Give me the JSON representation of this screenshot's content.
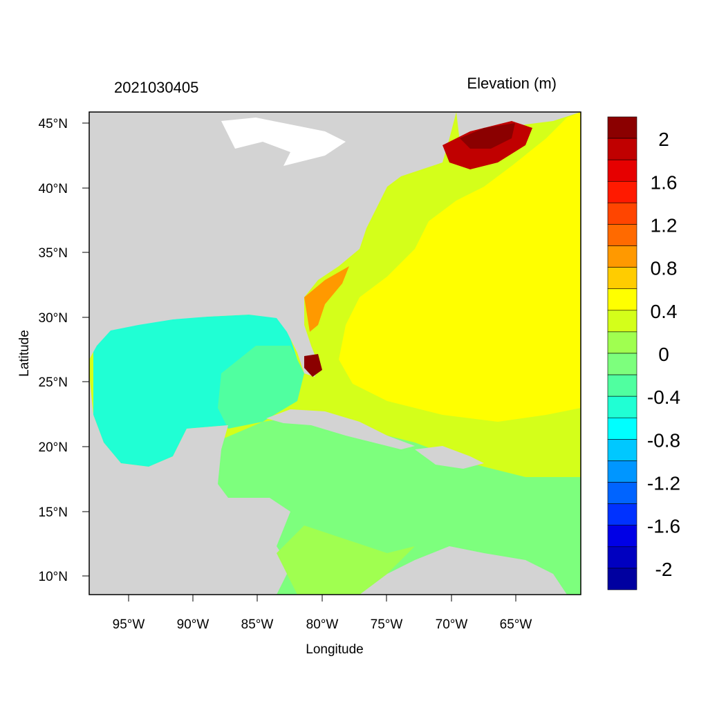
{
  "title_left": "2021030405",
  "title_right": "Elevation (m)",
  "xlabel": "Longitude",
  "ylabel": "Latitude",
  "lat_ticks": [
    "45°N",
    "40°N",
    "35°N",
    "30°N",
    "25°N",
    "20°N",
    "15°N",
    "10°N"
  ],
  "lon_ticks": [
    "95°W",
    "90°W",
    "85°W",
    "80°W",
    "75°W",
    "70°W",
    "65°W"
  ],
  "colorbar_labels": [
    "2",
    "1.6",
    "1.2",
    "0.8",
    "0.4",
    "0",
    "-0.4",
    "-0.8",
    "-1.2",
    "-1.6",
    "-2"
  ],
  "colorbar_colors": [
    "#8b0000",
    "#c00000",
    "#e60000",
    "#ff1a00",
    "#ff4500",
    "#ff6a00",
    "#ff9900",
    "#ffcc00",
    "#ffff00",
    "#d4ff1a",
    "#a0ff50",
    "#7dff7d",
    "#50ffa0",
    "#20ffd4",
    "#00ffff",
    "#00c8ff",
    "#0096ff",
    "#0064ff",
    "#0032ff",
    "#0000e6",
    "#0000c0",
    "#0000a0"
  ],
  "colors": {
    "land": "#d3d3d3",
    "background": "#ffffff"
  }
}
